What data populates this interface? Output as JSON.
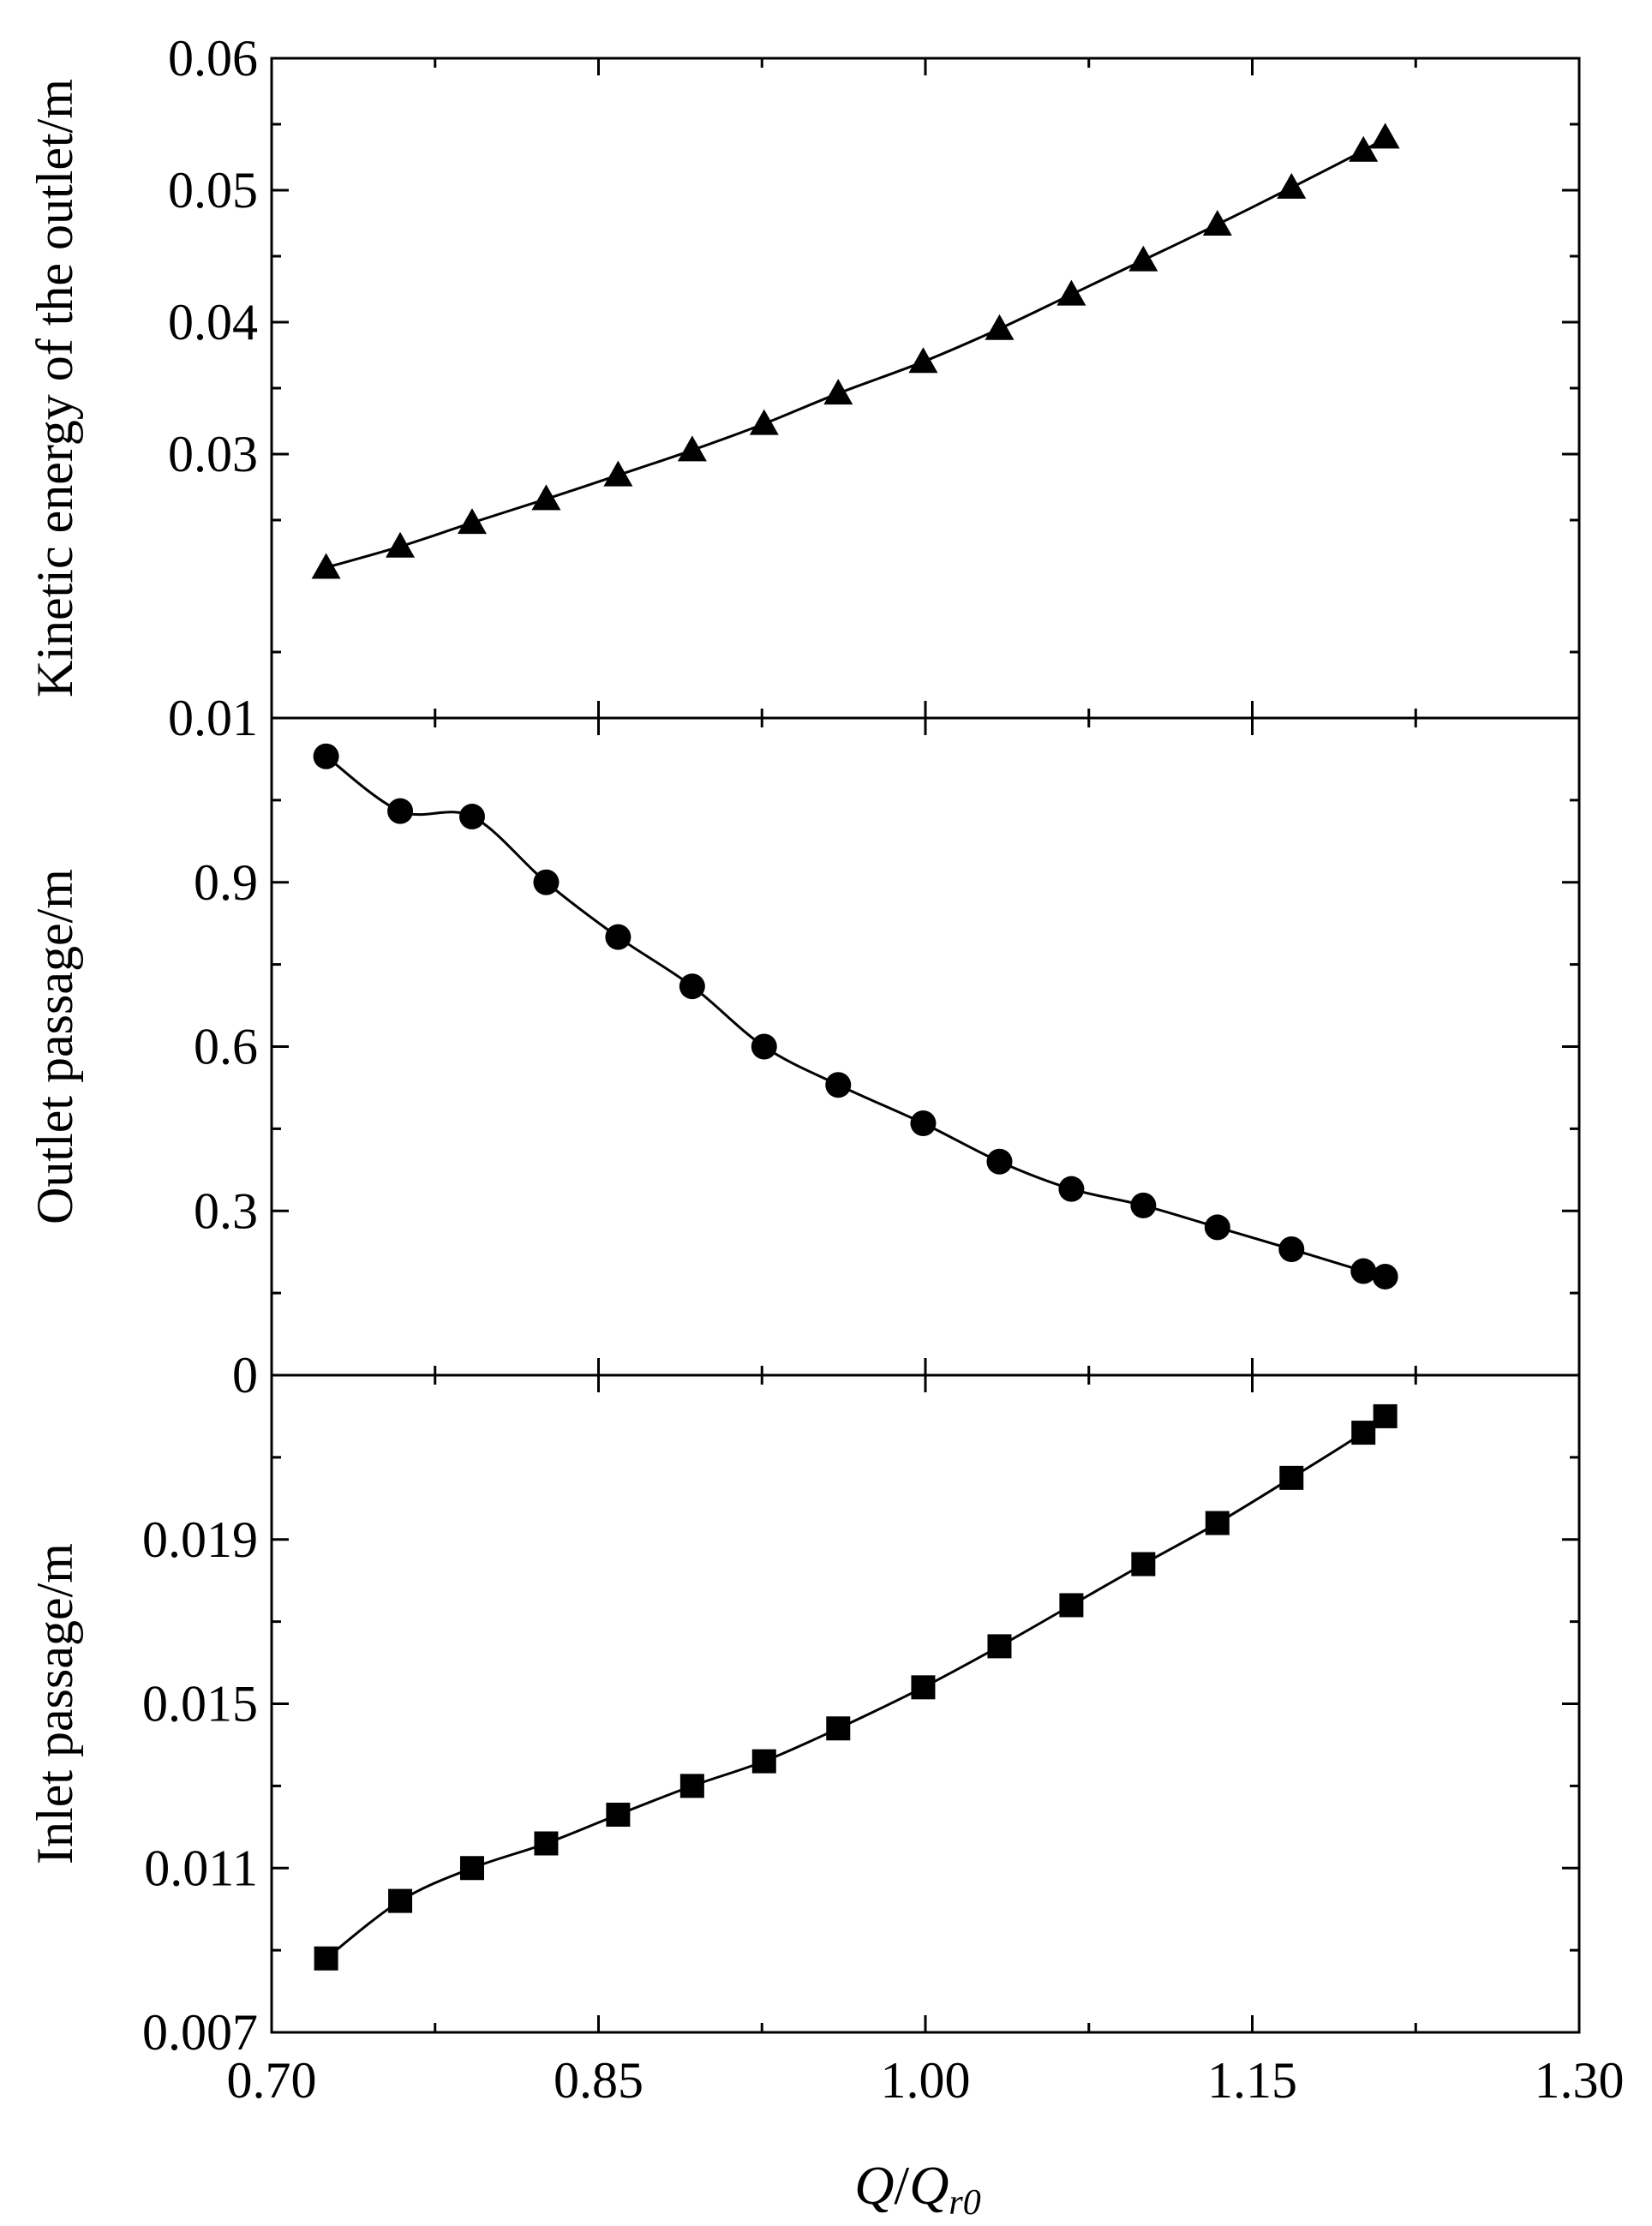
{
  "chart_data": {
    "type": "line",
    "xlabel": {
      "main": "Q",
      "slash": "/",
      "denom": "Q",
      "sub": "r0"
    },
    "x_ticks": [
      "0.70",
      "0.85",
      "1.00",
      "1.15",
      "1.30"
    ],
    "xlim": [
      0.7,
      1.3
    ],
    "x": [
      0.725,
      0.759,
      0.792,
      0.826,
      0.859,
      0.893,
      0.926,
      0.96,
      0.999,
      1.034,
      1.067,
      1.1,
      1.134,
      1.168,
      1.201,
      1.211
    ],
    "panels": [
      {
        "ylabel": "Kinetic energy of the outlet/m",
        "ylim": [
          0.01,
          0.06
        ],
        "y_ticks": [
          "0.01",
          "0.03",
          "0.04",
          "0.05",
          "0.06"
        ],
        "y_tick_values": [
          0.01,
          0.03,
          0.04,
          0.05,
          0.06
        ],
        "marker": "triangle",
        "values": [
          0.0214,
          0.023,
          0.0248,
          0.0266,
          0.0284,
          0.0303,
          0.0323,
          0.0346,
          0.037,
          0.0395,
          0.0421,
          0.0447,
          0.0474,
          0.0502,
          0.053,
          0.054
        ]
      },
      {
        "ylabel": "Outlet passage/m",
        "ylim": [
          0,
          1.2
        ],
        "y_ticks": [
          "0",
          "0.3",
          "0.6",
          "0.9"
        ],
        "y_tick_values": [
          0,
          0.3,
          0.6,
          0.9
        ],
        "marker": "circle",
        "values": [
          1.13,
          1.03,
          1.02,
          0.9,
          0.8,
          0.71,
          0.6,
          0.53,
          0.46,
          0.39,
          0.34,
          0.31,
          0.27,
          0.23,
          0.19,
          0.18
        ]
      },
      {
        "ylabel": "Inlet passage/m",
        "ylim": [
          0.007,
          0.023
        ],
        "y_ticks": [
          "0.007",
          "0.011",
          "0.015",
          "0.019"
        ],
        "y_tick_values": [
          0.007,
          0.011,
          0.015,
          0.019
        ],
        "marker": "square",
        "values": [
          0.0088,
          0.0102,
          0.011,
          0.0116,
          0.0123,
          0.013,
          0.0136,
          0.0144,
          0.0154,
          0.0164,
          0.0174,
          0.0184,
          0.0194,
          0.0205,
          0.0216,
          0.022
        ]
      }
    ]
  }
}
